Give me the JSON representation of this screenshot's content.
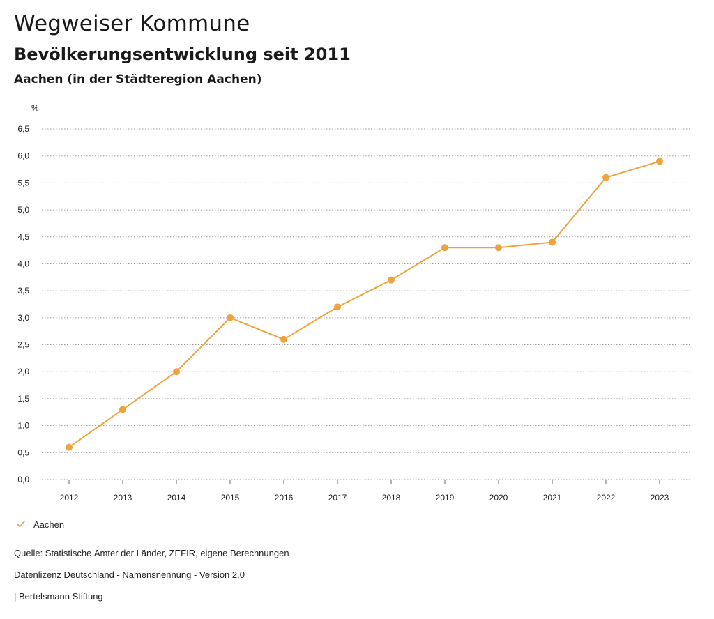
{
  "header": {
    "title": "Wegweiser Kommune",
    "subtitle": "Bevölkerungsentwicklung seit 2011",
    "region": "Aachen (in der Städteregion Aachen)"
  },
  "colors": {
    "series": "#f0a23c",
    "grid": "#9a9a9a",
    "text": "#222222"
  },
  "chart_data": {
    "type": "line",
    "title": "Bevölkerungsentwicklung seit 2011",
    "ylabel": "%",
    "xlabel": "",
    "x": [
      "2012",
      "2013",
      "2014",
      "2015",
      "2016",
      "2017",
      "2018",
      "2019",
      "2020",
      "2021",
      "2022",
      "2023"
    ],
    "series": [
      {
        "name": "Aachen",
        "values": [
          0.6,
          1.3,
          2.0,
          3.0,
          2.6,
          3.2,
          3.7,
          4.3,
          4.3,
          4.4,
          5.6,
          5.9
        ]
      }
    ],
    "ylim": [
      0,
      6.5
    ],
    "yticks": [
      "0,0",
      "0,5",
      "1,0",
      "1,5",
      "2,0",
      "2,5",
      "3,0",
      "3,5",
      "4,0",
      "4,5",
      "5,0",
      "5,5",
      "6,0",
      "6,5"
    ],
    "ytick_values": [
      0,
      0.5,
      1.0,
      1.5,
      2.0,
      2.5,
      3.0,
      3.5,
      4.0,
      4.5,
      5.0,
      5.5,
      6.0,
      6.5
    ],
    "grid": true,
    "legend": "bottom-left"
  },
  "legend": {
    "label": "Aachen"
  },
  "footer": {
    "source": "Quelle: Statistische Ämter der Länder, ZEFIR, eigene Berechnungen",
    "license": "Datenlizenz Deutschland - Namensnennung - Version 2.0",
    "publisher": "| Bertelsmann Stiftung"
  }
}
